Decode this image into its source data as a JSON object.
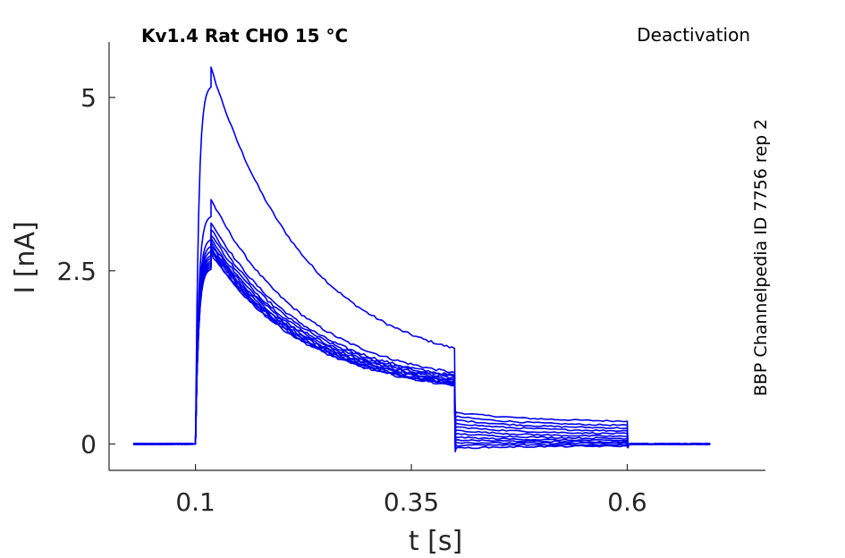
{
  "chart_data": {
    "type": "line",
    "title": "Kv1.4  Rat  CHO  15 °C",
    "mode_label": "Deactivation",
    "side_label": "BBP Channelpedia ID 7756 rep 2",
    "xlabel": "t [s]",
    "ylabel": "I [nA]",
    "xlim": [
      0.0,
      0.76
    ],
    "ylim": [
      -0.38,
      5.8
    ],
    "x_ticks": [
      0.1,
      0.35,
      0.6
    ],
    "x_tick_labels": [
      "0.1",
      "0.35",
      "0.6"
    ],
    "y_ticks": [
      0,
      2.5,
      5
    ],
    "y_tick_labels": [
      "0",
      "2.5",
      "5"
    ],
    "grid": false,
    "legend": "none",
    "line_color": "#0000ee",
    "protocol": {
      "baseline_start": 0.028,
      "step_on": 0.1,
      "rise_end": 0.118,
      "step_off": 0.4,
      "tail_end": 0.6,
      "end": 0.698
    },
    "series": [
      {
        "peak": 5.15,
        "step_end": 1.38,
        "tail_start": 0.46,
        "tail_end": 0.33
      },
      {
        "peak": 3.28,
        "step_end": 1.03,
        "tail_start": 0.4,
        "tail_end": 0.27
      },
      {
        "peak": 2.95,
        "step_end": 0.99,
        "tail_start": 0.35,
        "tail_end": 0.23
      },
      {
        "peak": 2.85,
        "step_end": 0.97,
        "tail_start": 0.3,
        "tail_end": 0.19
      },
      {
        "peak": 2.78,
        "step_end": 0.95,
        "tail_start": 0.25,
        "tail_end": 0.15
      },
      {
        "peak": 2.72,
        "step_end": 0.93,
        "tail_start": 0.2,
        "tail_end": 0.11
      },
      {
        "peak": 2.68,
        "step_end": 0.91,
        "tail_start": 0.15,
        "tail_end": 0.08
      },
      {
        "peak": 2.64,
        "step_end": 0.9,
        "tail_start": 0.1,
        "tail_end": 0.05
      },
      {
        "peak": 2.61,
        "step_end": 0.88,
        "tail_start": 0.06,
        "tail_end": 0.03
      },
      {
        "peak": 2.58,
        "step_end": 0.87,
        "tail_start": 0.02,
        "tail_end": 0.01
      },
      {
        "peak": 2.55,
        "step_end": 0.86,
        "tail_start": -0.02,
        "tail_end": -0.01
      },
      {
        "peak": 2.52,
        "step_end": 0.85,
        "tail_start": -0.06,
        "tail_end": -0.03
      }
    ]
  }
}
